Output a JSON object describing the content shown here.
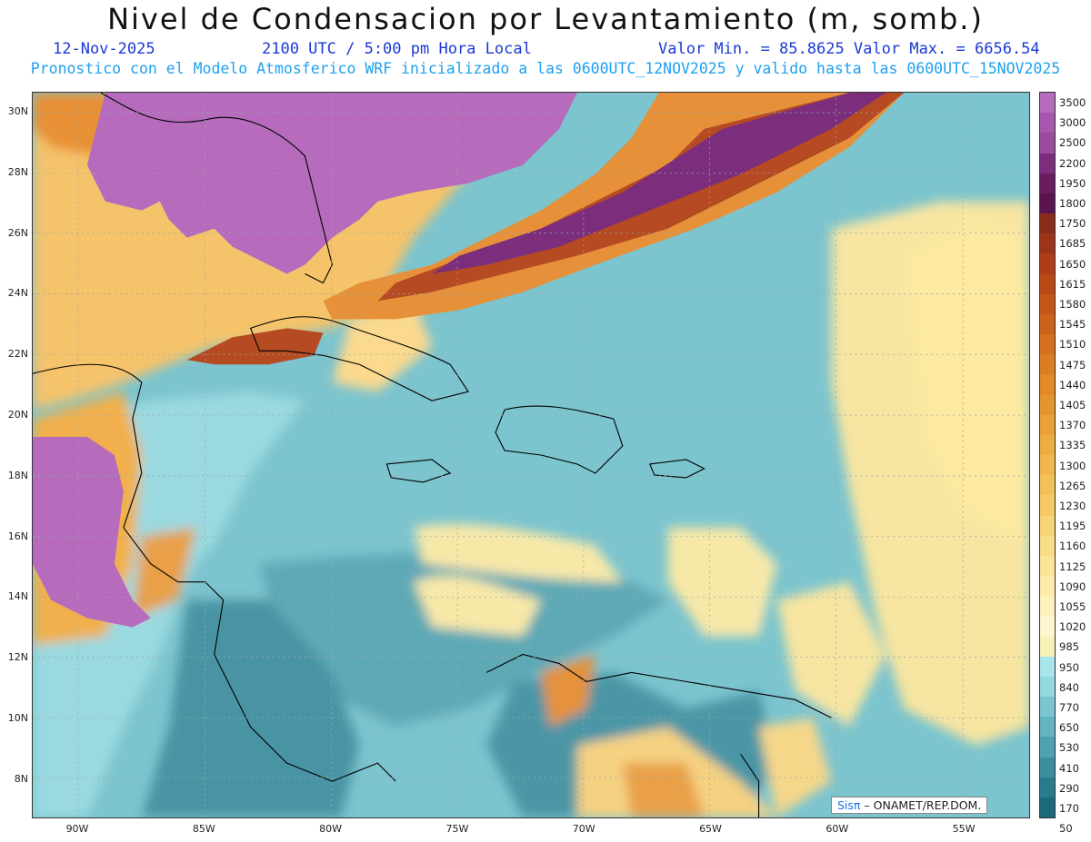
{
  "header": {
    "title": "Nivel de Condensacion por Levantamiento (m, somb.)",
    "date": "12-Nov-2025",
    "time": "2100 UTC / 5:00 pm Hora Local",
    "minmax": "Valor Min. = 85.8625   Valor Max. = 6656.54",
    "subtitle": "Pronostico con el Modelo Atmosferico WRF inicializado a las 0600UTC_12NOV2025 y valido hasta las  0600UTC_15NOV2025"
  },
  "map": {
    "lat_labels": [
      "30N",
      "28N",
      "26N",
      "24N",
      "22N",
      "20N",
      "18N",
      "16N",
      "14N",
      "12N",
      "10N",
      "8N"
    ],
    "lon_labels": [
      "90W",
      "85W",
      "80W",
      "75W",
      "70W",
      "65W",
      "60W",
      "55W"
    ],
    "credit_sis": "Sisπ",
    "credit_rest": " – ONAMET/REP.DOM."
  },
  "colorbar": {
    "labels": [
      "3500",
      "3000",
      "2500",
      "2200",
      "1950",
      "1800",
      "1750",
      "1685",
      "1650",
      "1615",
      "1580",
      "1545",
      "1510",
      "1475",
      "1440",
      "1405",
      "1370",
      "1335",
      "1300",
      "1265",
      "1230",
      "1195",
      "1160",
      "1125",
      "1090",
      "1055",
      "1020",
      "985",
      "950",
      "840",
      "770",
      "650",
      "530",
      "410",
      "290",
      "170",
      "50"
    ],
    "colors": [
      "#b66bbd",
      "#a658ac",
      "#9a4c9f",
      "#7c2e7c",
      "#6a1c60",
      "#5a1550",
      "#8a2c1c",
      "#9b3418",
      "#ae3d18",
      "#b84a18",
      "#c4561a",
      "#cc631c",
      "#d4701e",
      "#db7d22",
      "#e18a27",
      "#e4962d",
      "#e8a236",
      "#edae40",
      "#f0b84c",
      "#f2c25a",
      "#f5cb68",
      "#f7d477",
      "#f9dc86",
      "#fbe496",
      "#fcebaa",
      "#fdf1bd",
      "#fef6d0",
      "#f6f1b8",
      "#a8e4ea",
      "#95d8df",
      "#7ac5cf",
      "#64b5c1",
      "#4fa2b1",
      "#3b8ea0",
      "#2a7b8d",
      "#1c6a7c"
    ]
  }
}
